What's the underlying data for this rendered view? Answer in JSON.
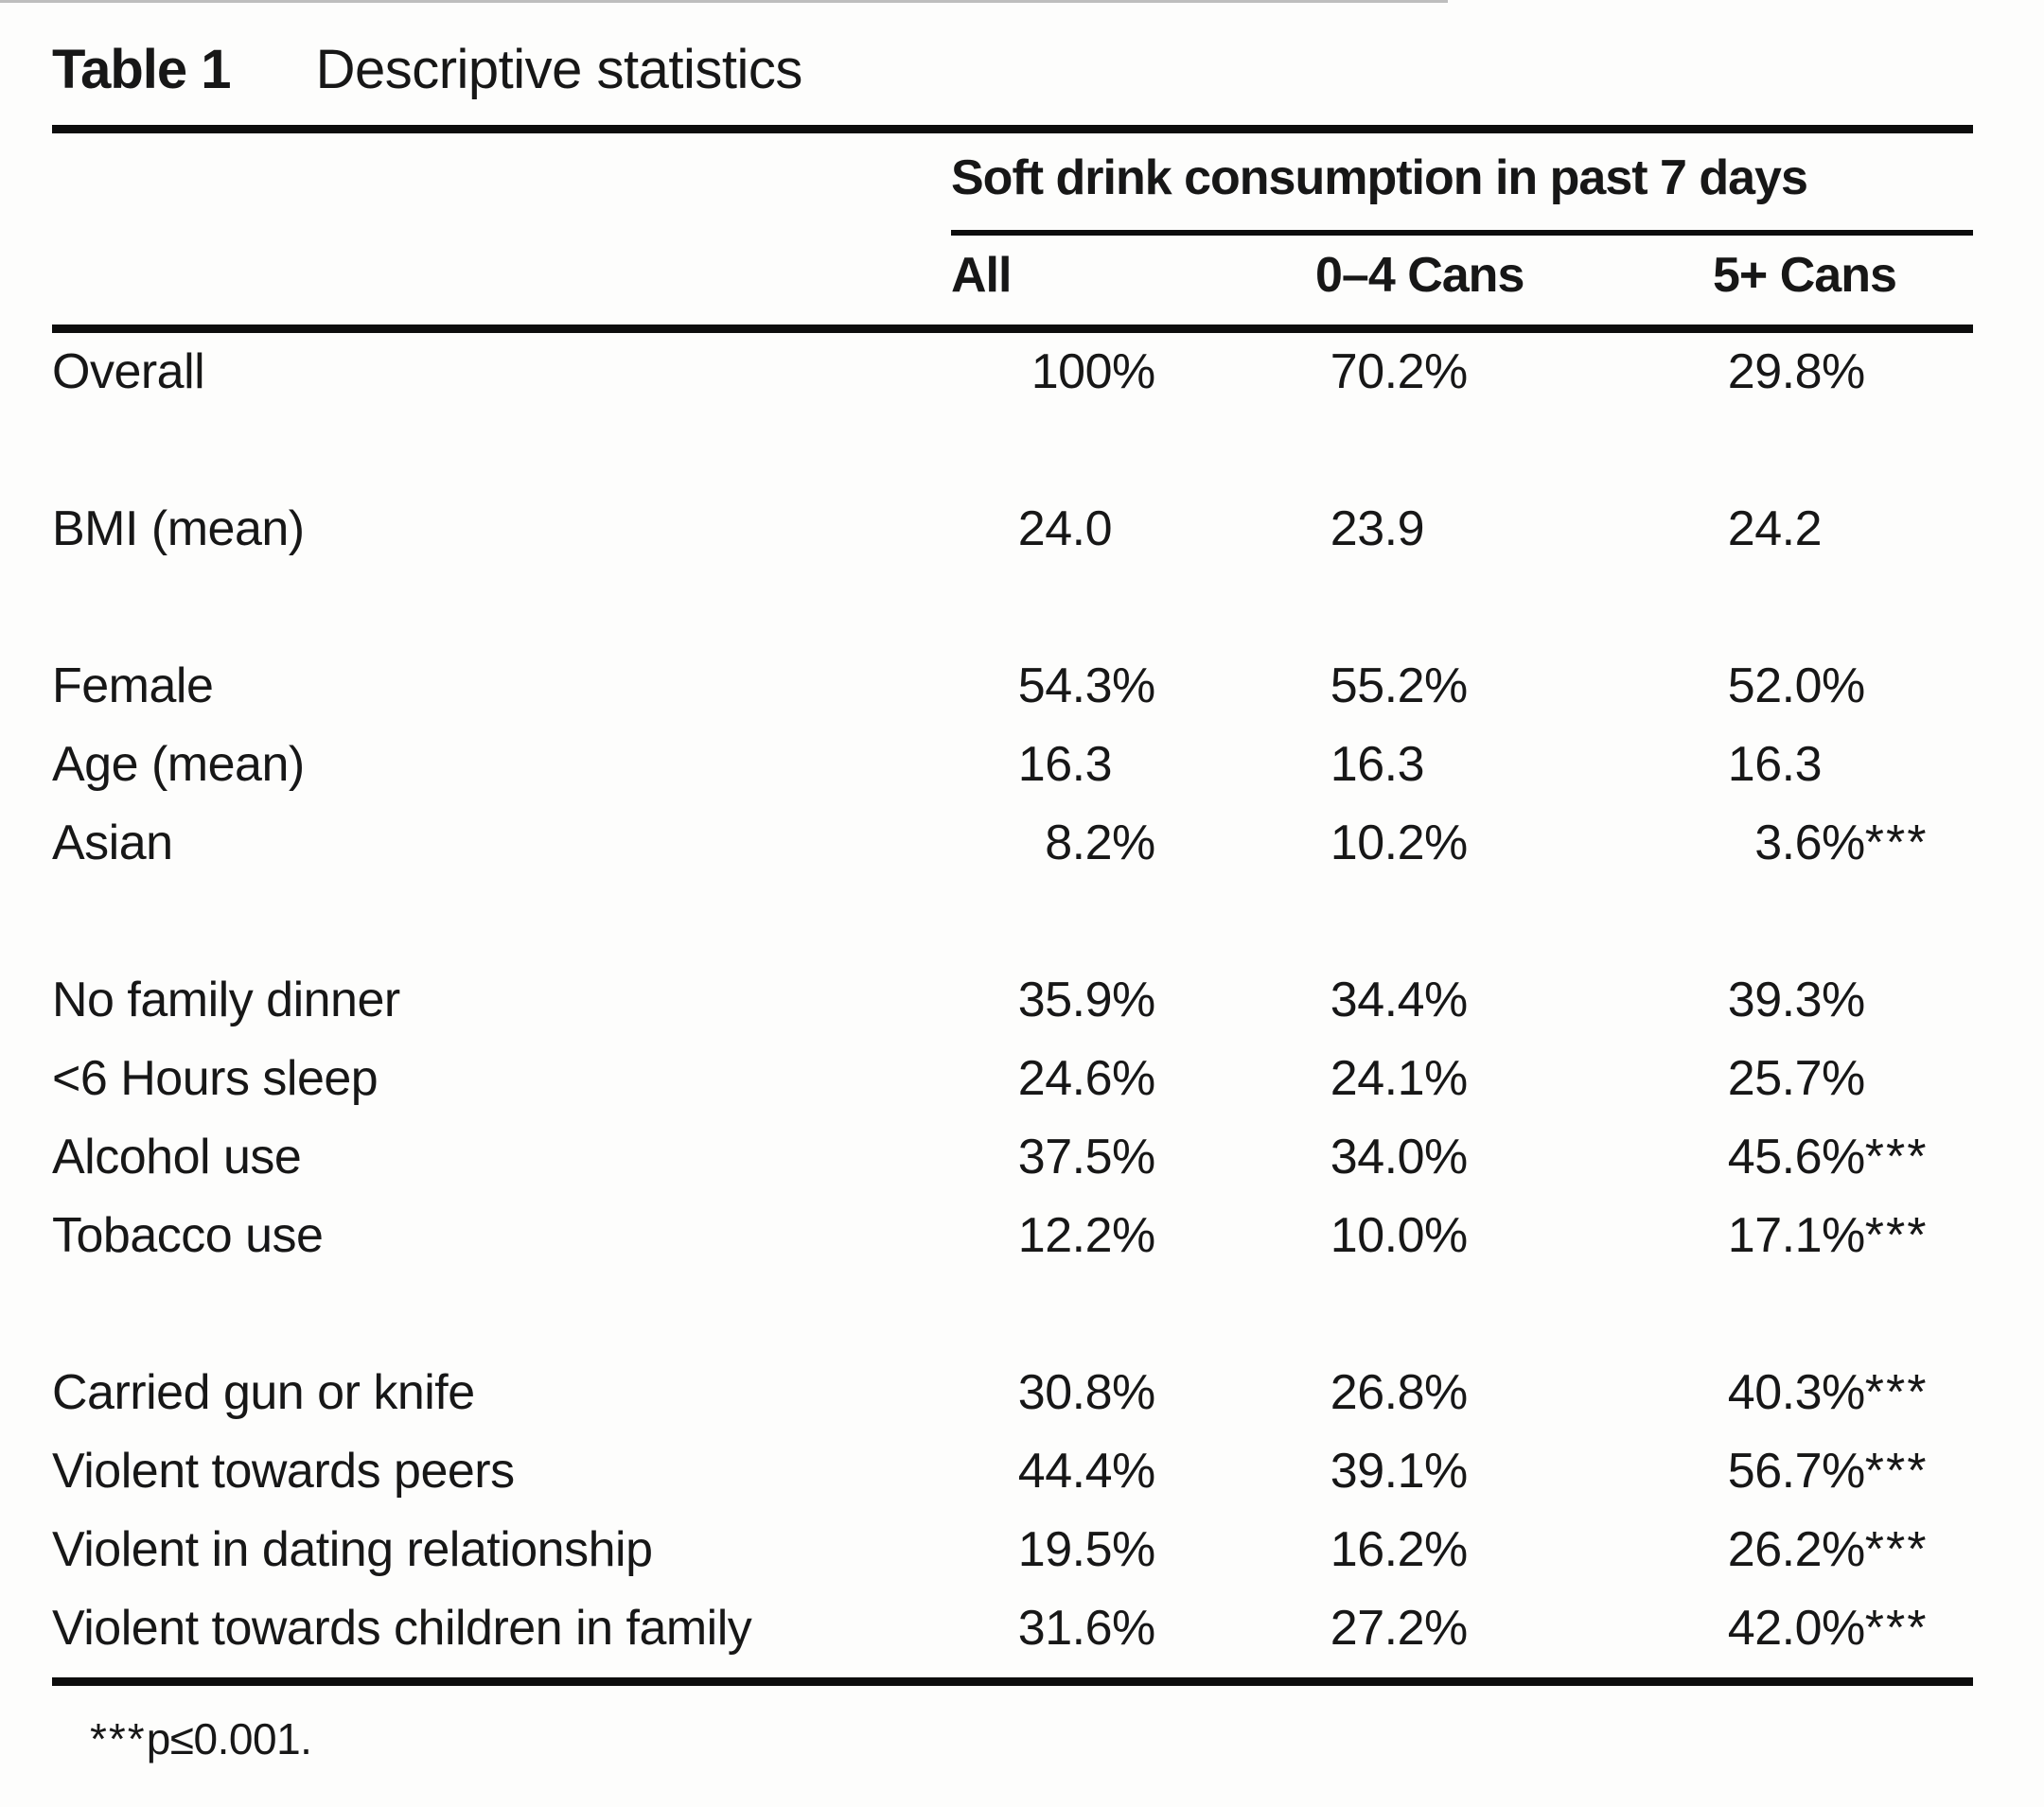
{
  "title": {
    "label": "Table 1",
    "caption": "Descriptive statistics"
  },
  "header": {
    "span_label": "Soft drink consumption in past 7 days",
    "columns": [
      "All",
      "0–4 Cans",
      "5+ Cans"
    ]
  },
  "groups": [
    {
      "rows": [
        {
          "label": "Overall",
          "values": [
            [
              "100",
              "%",
              ""
            ],
            [
              "70.2",
              "%",
              ""
            ],
            [
              "29.8",
              "%",
              ""
            ]
          ]
        }
      ]
    },
    {
      "rows": [
        {
          "label": "BMI (mean)",
          "values": [
            [
              "24.0",
              "",
              ""
            ],
            [
              "23.9",
              "",
              ""
            ],
            [
              "24.2",
              "",
              ""
            ]
          ]
        }
      ]
    },
    {
      "rows": [
        {
          "label": "Female",
          "values": [
            [
              "54.3",
              "%",
              ""
            ],
            [
              "55.2",
              "%",
              ""
            ],
            [
              "52.0",
              "%",
              ""
            ]
          ]
        },
        {
          "label": "Age (mean)",
          "values": [
            [
              "16.3",
              "",
              ""
            ],
            [
              "16.3",
              "",
              ""
            ],
            [
              "16.3",
              "",
              ""
            ]
          ]
        },
        {
          "label": "Asian",
          "values": [
            [
              "8.2",
              "%",
              ""
            ],
            [
              "10.2",
              "%",
              ""
            ],
            [
              "3.6",
              "%",
              "***"
            ]
          ]
        }
      ]
    },
    {
      "rows": [
        {
          "label": "No family dinner",
          "values": [
            [
              "35.9",
              "%",
              ""
            ],
            [
              "34.4",
              "%",
              ""
            ],
            [
              "39.3",
              "%",
              ""
            ]
          ]
        },
        {
          "label": "<6 Hours sleep",
          "values": [
            [
              "24.6",
              "%",
              ""
            ],
            [
              "24.1",
              "%",
              ""
            ],
            [
              "25.7",
              "%",
              ""
            ]
          ]
        },
        {
          "label": "Alcohol use",
          "values": [
            [
              "37.5",
              "%",
              ""
            ],
            [
              "34.0",
              "%",
              ""
            ],
            [
              "45.6",
              "%",
              "***"
            ]
          ]
        },
        {
          "label": "Tobacco use",
          "values": [
            [
              "12.2",
              "%",
              ""
            ],
            [
              "10.0",
              "%",
              ""
            ],
            [
              "17.1",
              "%",
              "***"
            ]
          ]
        }
      ]
    },
    {
      "rows": [
        {
          "label": "Carried gun or knife",
          "values": [
            [
              "30.8",
              "%",
              ""
            ],
            [
              "26.8",
              "%",
              ""
            ],
            [
              "40.3",
              "%",
              "***"
            ]
          ]
        },
        {
          "label": "Violent towards peers",
          "values": [
            [
              "44.4",
              "%",
              ""
            ],
            [
              "39.1",
              "%",
              ""
            ],
            [
              "56.7",
              "%",
              "***"
            ]
          ]
        },
        {
          "label": "Violent in dating relationship",
          "values": [
            [
              "19.5",
              "%",
              ""
            ],
            [
              "16.2",
              "%",
              ""
            ],
            [
              "26.2",
              "%",
              "***"
            ]
          ]
        },
        {
          "label": "Violent towards children in family",
          "values": [
            [
              "31.6",
              "%",
              ""
            ],
            [
              "27.2",
              "%",
              ""
            ],
            [
              "42.0",
              "%",
              "***"
            ]
          ]
        }
      ]
    }
  ],
  "footnote": {
    "stars": "***",
    "text": "p≤0.001."
  }
}
